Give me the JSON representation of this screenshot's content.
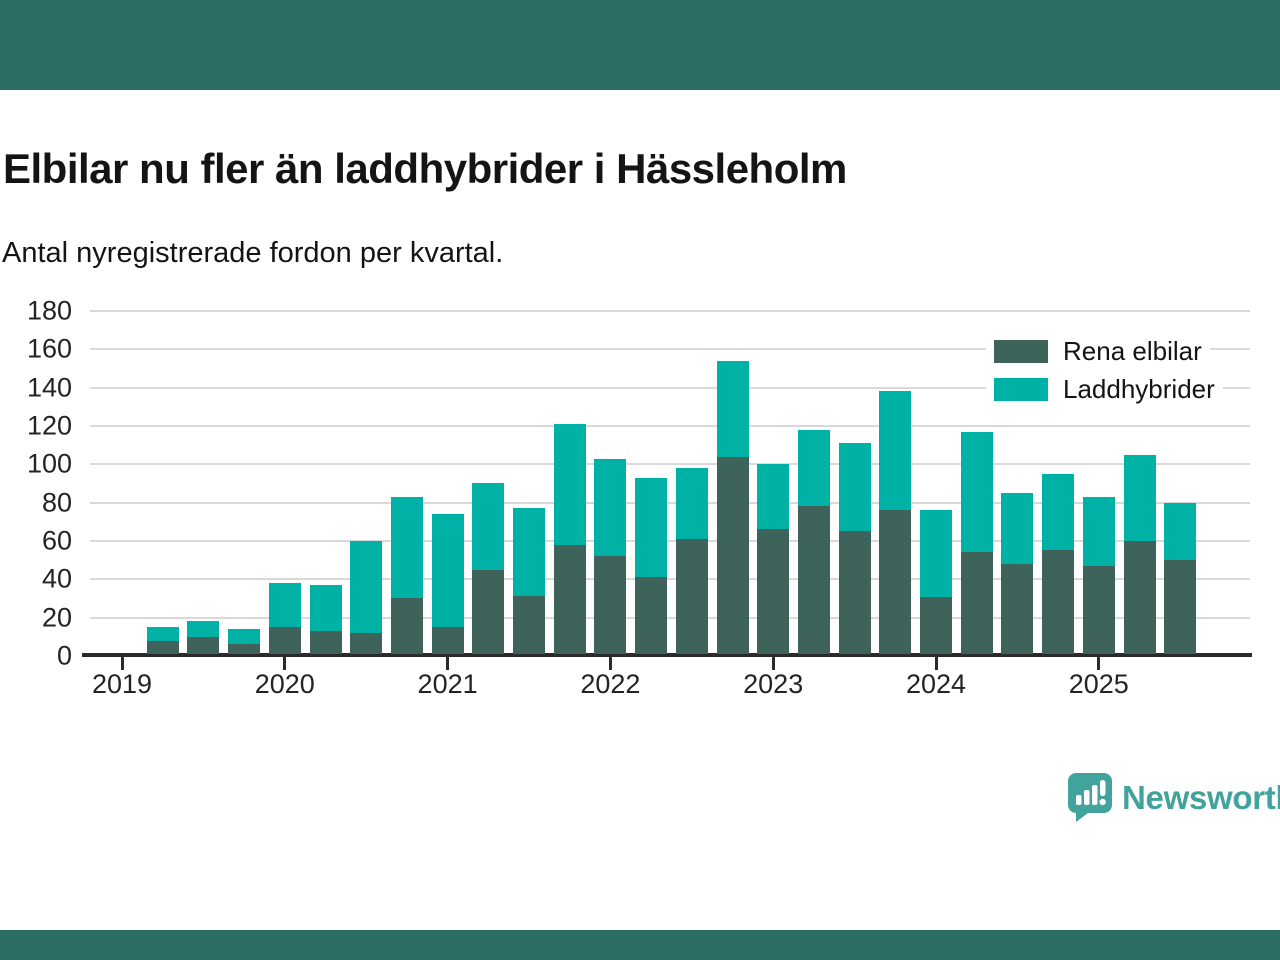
{
  "page": {
    "background": "#ffffff",
    "top_band_color": "#2c6e63",
    "bottom_band_color": "#2c6e63"
  },
  "header": {
    "title": "Elbilar nu fler än laddhybrider i Hässleholm",
    "subtitle": "Antal nyregistrerade fordon per kvartal."
  },
  "legend": {
    "items": [
      {
        "label": "Rena elbilar",
        "color": "#3e635b"
      },
      {
        "label": "Laddhybrider",
        "color": "#00b1a6"
      }
    ]
  },
  "chart_data": {
    "type": "bar",
    "stacked": true,
    "title": "Elbilar nu fler än laddhybrider i Hässleholm",
    "subtitle": "Antal nyregistrerade fordon per kvartal.",
    "categories": [
      "2019 Q2",
      "2019 Q3",
      "2019 Q4",
      "2020 Q1",
      "2020 Q2",
      "2020 Q3",
      "2020 Q4",
      "2021 Q1",
      "2021 Q2",
      "2021 Q3",
      "2021 Q4",
      "2022 Q1",
      "2022 Q2",
      "2022 Q3",
      "2022 Q4",
      "2023 Q1",
      "2023 Q2",
      "2023 Q3",
      "2023 Q4",
      "2024 Q1",
      "2024 Q2",
      "2024 Q3",
      "2024 Q4",
      "2025 Q1",
      "2025 Q2",
      "2025 Q3"
    ],
    "series": [
      {
        "name": "Rena elbilar",
        "color": "#3e635b",
        "values": [
          7,
          9,
          5,
          14,
          12,
          11,
          29,
          14,
          44,
          30,
          57,
          51,
          40,
          60,
          103,
          65,
          77,
          64,
          75,
          30,
          53,
          47,
          54,
          46,
          59,
          49
        ]
      },
      {
        "name": "Laddhybrider",
        "color": "#00b1a6",
        "values": [
          7,
          8,
          8,
          23,
          24,
          48,
          53,
          59,
          45,
          46,
          63,
          51,
          52,
          37,
          50,
          34,
          40,
          46,
          62,
          45,
          63,
          37,
          40,
          36,
          45,
          30
        ]
      }
    ],
    "totals": [
      14,
      17,
      13,
      37,
      36,
      59,
      82,
      73,
      89,
      76,
      120,
      102,
      92,
      97,
      153,
      99,
      117,
      110,
      137,
      75,
      116,
      84,
      94,
      82,
      104,
      79
    ],
    "xlabel": "",
    "ylabel": "",
    "ylim": [
      0,
      180
    ],
    "yticks": [
      0,
      20,
      40,
      60,
      80,
      100,
      120,
      140,
      160,
      180
    ],
    "xticks": [
      2019,
      2020,
      2021,
      2022,
      2023,
      2024,
      2025
    ],
    "grid": true,
    "legend_position": "top-right"
  },
  "footer": {
    "brand": "Newsworthy",
    "brand_color": "#41a39b",
    "logo_icon": "chart-speech-bubble-icon"
  }
}
